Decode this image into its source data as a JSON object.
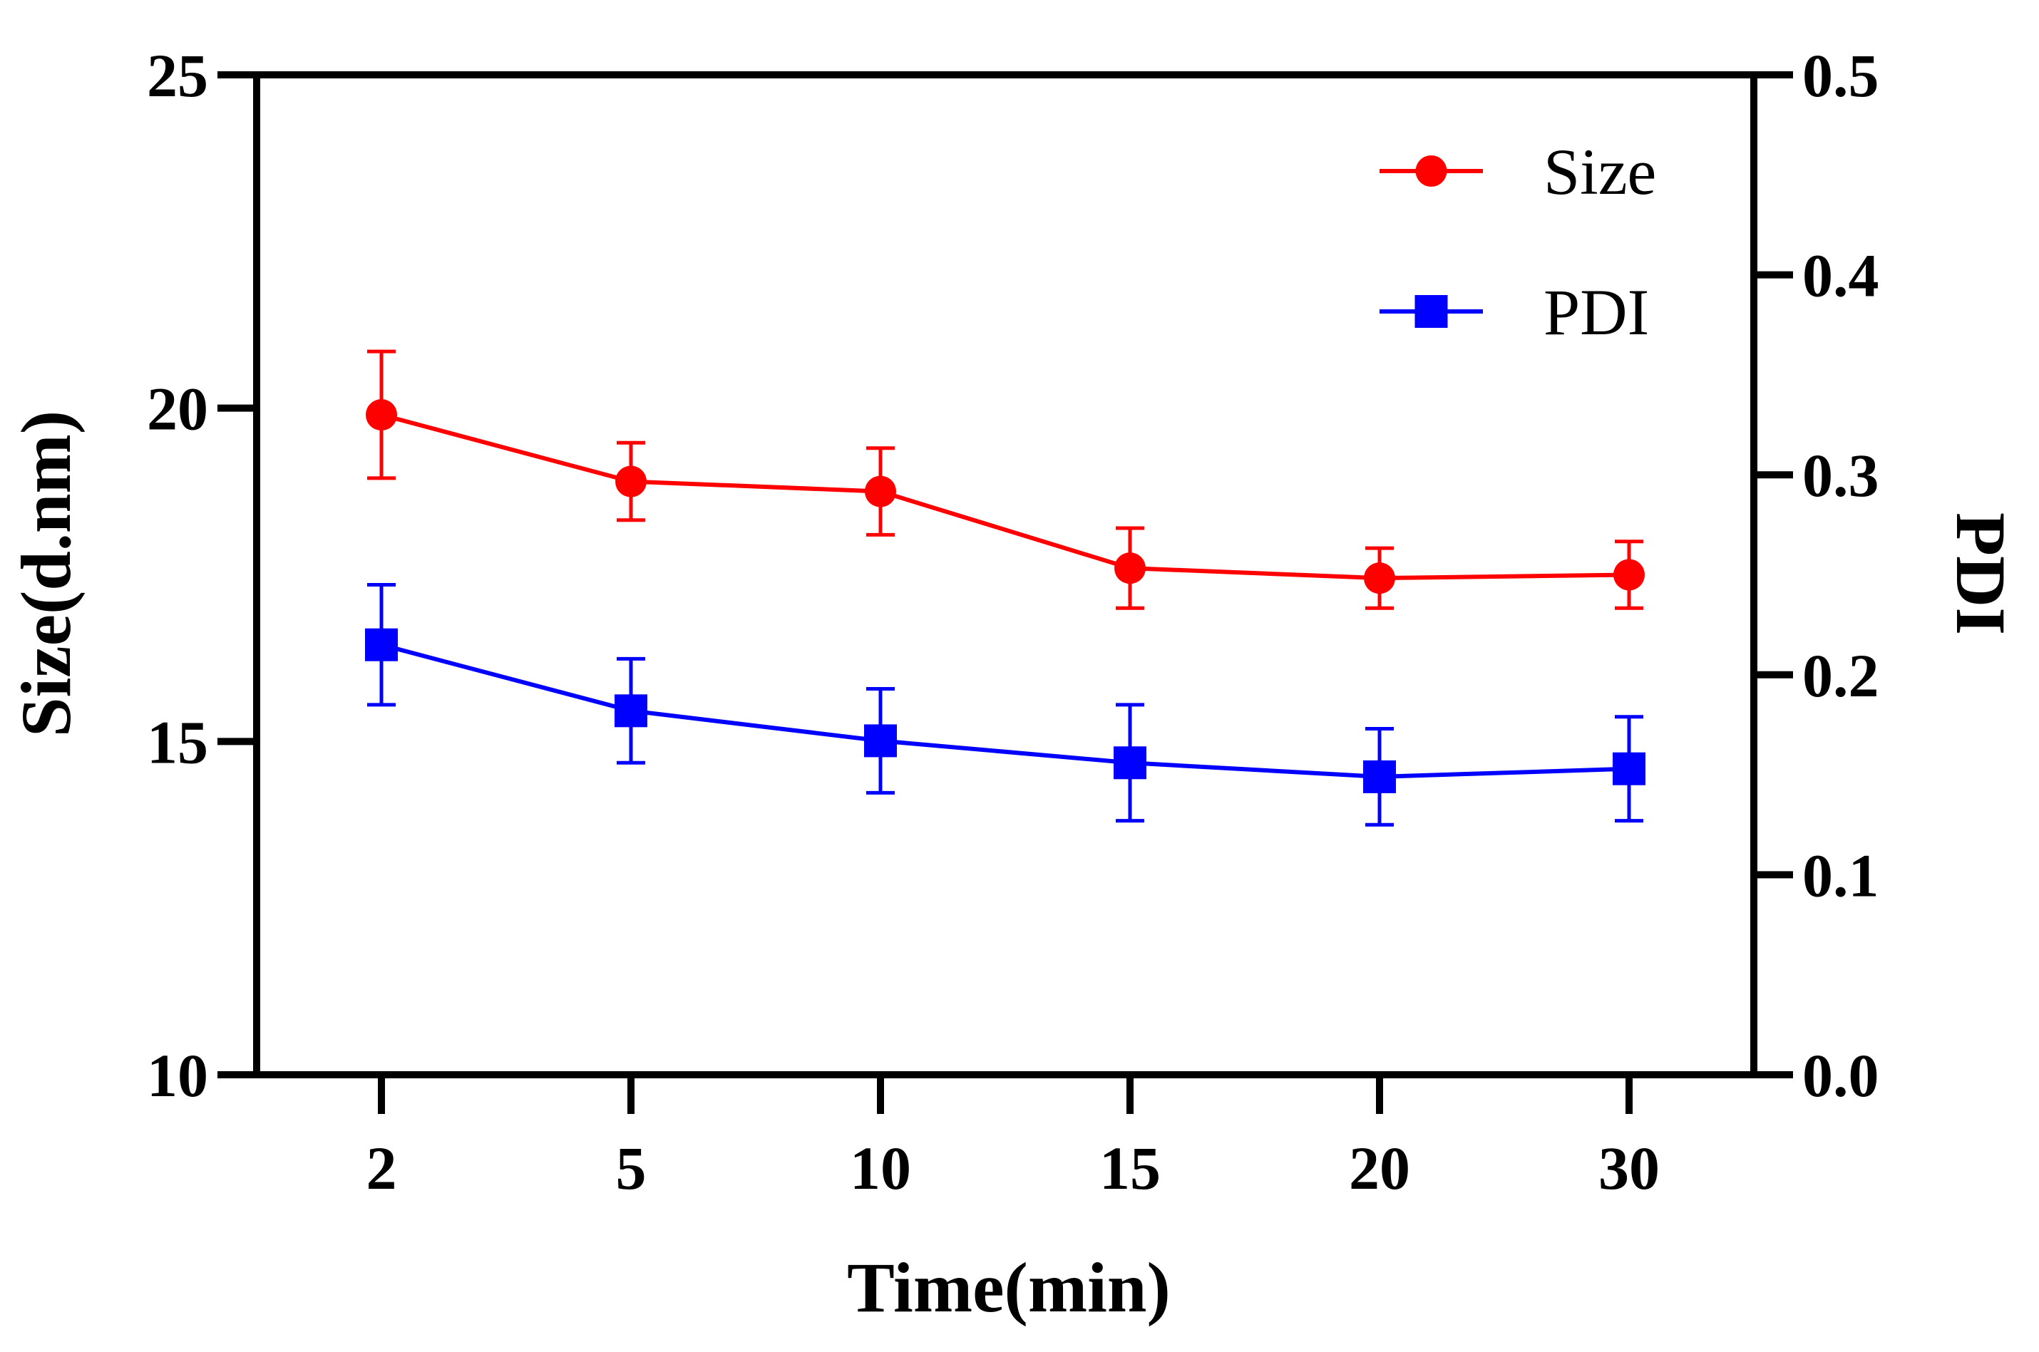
{
  "chart_data": {
    "type": "line",
    "categories": [
      "2",
      "5",
      "10",
      "15",
      "20",
      "30"
    ],
    "xlabel": "Time(min)",
    "ylabel": "Size(d.nm)",
    "y2label": "PDI",
    "ylim": [
      10,
      25
    ],
    "y2lim": [
      0.0,
      0.5
    ],
    "yticks": [
      "10",
      "15",
      "20",
      "25"
    ],
    "y2ticks": [
      "0.0",
      "0.1",
      "0.2",
      "0.3",
      "0.4",
      "0.5"
    ],
    "legend_position": "top-right",
    "series": [
      {
        "name": "Size",
        "axis": "left",
        "color": "#ff0000",
        "marker": "circle",
        "values": [
          19.9,
          18.9,
          18.75,
          17.6,
          17.45,
          17.5
        ],
        "errors": [
          0.95,
          0.58,
          0.65,
          0.6,
          0.45,
          0.5
        ]
      },
      {
        "name": "PDI",
        "axis": "right",
        "color": "#0000ff",
        "marker": "square",
        "values": [
          0.215,
          0.182,
          0.167,
          0.156,
          0.149,
          0.153
        ],
        "errors": [
          0.03,
          0.026,
          0.026,
          0.029,
          0.024,
          0.026
        ]
      }
    ]
  }
}
